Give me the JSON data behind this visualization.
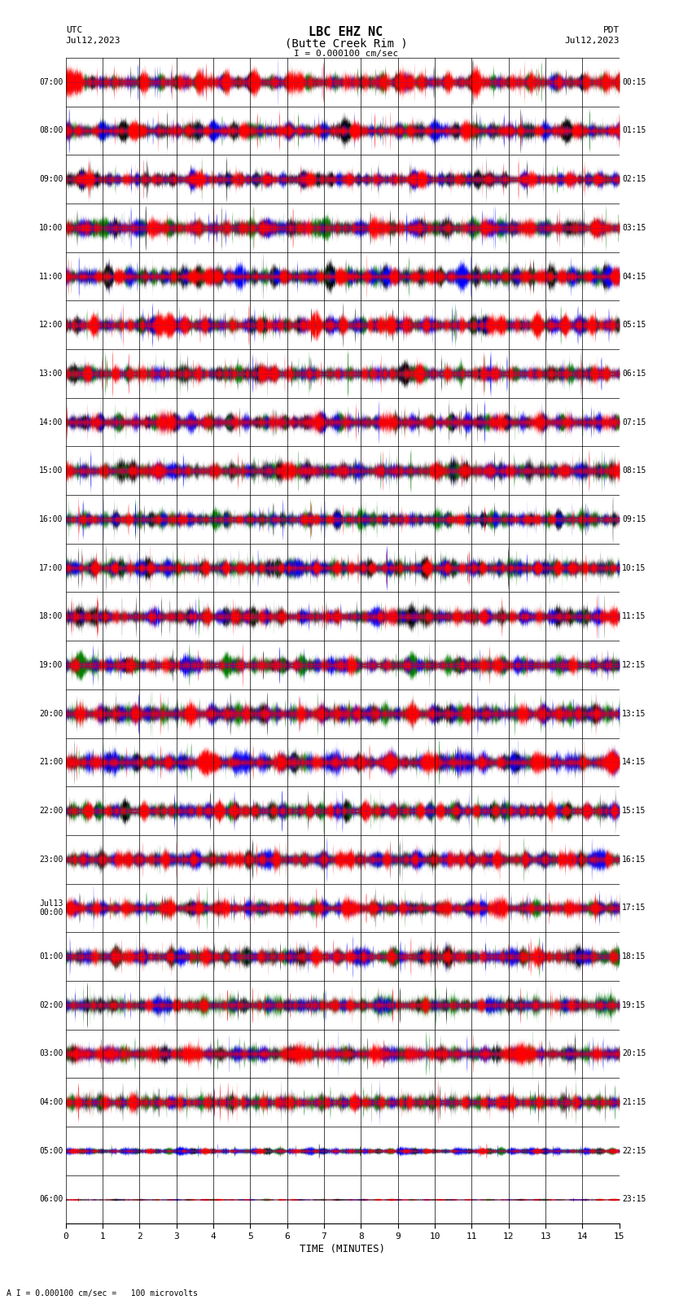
{
  "title_line1": "LBC EHZ NC",
  "title_line2": "(Butte Creek Rim )",
  "scale_text": "I = 0.000100 cm/sec",
  "label_UTC": "UTC",
  "label_PDT": "PDT",
  "date_left": "Jul12,2023",
  "date_right": "Jul12,2023",
  "footer_text": "A I = 0.000100 cm/sec =   100 microvolts",
  "xlabel": "TIME (MINUTES)",
  "bg_color": "#ffffff",
  "n_rows": 24,
  "total_minutes": 15,
  "left_labels_UTC": [
    "07:00",
    "08:00",
    "09:00",
    "10:00",
    "11:00",
    "12:00",
    "13:00",
    "14:00",
    "15:00",
    "16:00",
    "17:00",
    "18:00",
    "19:00",
    "20:00",
    "21:00",
    "22:00",
    "23:00",
    "Jul13\n00:00",
    "01:00",
    "02:00",
    "03:00",
    "04:00",
    "05:00",
    "06:00"
  ],
  "right_labels_PDT": [
    "00:15",
    "01:15",
    "02:15",
    "03:15",
    "04:15",
    "05:15",
    "06:15",
    "07:15",
    "08:15",
    "09:15",
    "10:15",
    "11:15",
    "12:15",
    "13:15",
    "14:15",
    "15:15",
    "16:15",
    "17:15",
    "18:15",
    "19:15",
    "20:15",
    "21:15",
    "22:15",
    "23:15"
  ],
  "amp_scales": [
    1.0,
    1.0,
    1.0,
    1.0,
    1.0,
    1.0,
    1.0,
    1.0,
    1.0,
    1.0,
    1.0,
    1.0,
    1.0,
    1.0,
    1.0,
    1.0,
    1.0,
    1.0,
    1.0,
    1.0,
    1.0,
    1.0,
    0.35,
    0.08
  ],
  "colors_fill": [
    "red",
    "blue",
    "green",
    "black"
  ],
  "seed": 42
}
